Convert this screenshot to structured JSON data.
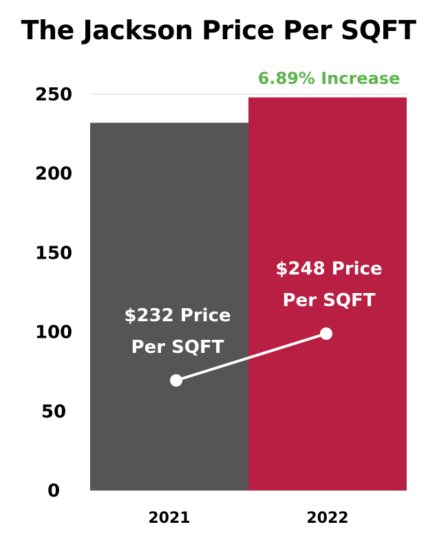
{
  "chart_data": {
    "type": "bar",
    "title": "The Jackson Price Per SQFT",
    "categories": [
      "2021",
      "2022"
    ],
    "values": [
      232,
      248
    ],
    "data_labels": [
      [
        "$232 Price",
        "Per SQFT"
      ],
      [
        "$248 Price",
        "Per SQFT"
      ]
    ],
    "annotation": "6.89% Increase",
    "y_ticks": [
      0,
      50,
      100,
      150,
      200,
      250
    ],
    "ylim": [
      0,
      250
    ],
    "grid": true,
    "colors": {
      "bars": [
        "#555555",
        "#b81f43"
      ],
      "annotation": "#5cb54a",
      "connector": "#ffffff"
    }
  }
}
